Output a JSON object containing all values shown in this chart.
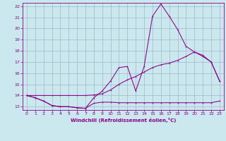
{
  "xlabel": "Windchill (Refroidissement éolien,°C)",
  "bg_color": "#cbe8ee",
  "grid_color": "#a0b8cc",
  "line_color": "#880088",
  "xlim": [
    -0.5,
    23.5
  ],
  "ylim": [
    12.7,
    22.3
  ],
  "x_ticks": [
    0,
    1,
    2,
    3,
    4,
    5,
    6,
    7,
    8,
    9,
    10,
    11,
    12,
    13,
    14,
    15,
    16,
    17,
    18,
    19,
    20,
    21,
    22,
    23
  ],
  "y_ticks": [
    13,
    14,
    15,
    16,
    17,
    18,
    19,
    20,
    21,
    22
  ],
  "line1_x": [
    0,
    1,
    2,
    3,
    4,
    5,
    6,
    7,
    8,
    9,
    10,
    11,
    12,
    13,
    14,
    15,
    16,
    17,
    18,
    19,
    20,
    21,
    22,
    23
  ],
  "line1_y": [
    14.0,
    13.8,
    13.5,
    13.1,
    13.0,
    13.0,
    12.9,
    12.85,
    13.3,
    13.4,
    13.4,
    13.35,
    13.35,
    13.35,
    13.35,
    13.35,
    13.35,
    13.35,
    13.35,
    13.35,
    13.35,
    13.35,
    13.35,
    13.5
  ],
  "line2_x": [
    0,
    1,
    2,
    3,
    4,
    5,
    6,
    7,
    8,
    9,
    10,
    11,
    12,
    13,
    14,
    15,
    16,
    17,
    18,
    19,
    20,
    21,
    22,
    23
  ],
  "line2_y": [
    14.0,
    13.8,
    13.5,
    13.1,
    13.0,
    13.0,
    12.9,
    12.85,
    13.8,
    14.4,
    15.3,
    16.5,
    16.6,
    14.4,
    16.6,
    21.1,
    22.2,
    21.1,
    19.9,
    18.4,
    17.9,
    17.5,
    17.0,
    15.3
  ],
  "line3_x": [
    0,
    1,
    2,
    3,
    4,
    5,
    6,
    7,
    8,
    9,
    10,
    11,
    12,
    13,
    14,
    15,
    16,
    17,
    18,
    19,
    20,
    21,
    22,
    23
  ],
  "line3_y": [
    14.0,
    14.0,
    14.0,
    14.0,
    14.0,
    14.0,
    14.0,
    14.0,
    14.05,
    14.15,
    14.5,
    15.0,
    15.4,
    15.7,
    16.1,
    16.5,
    16.75,
    16.9,
    17.15,
    17.5,
    17.9,
    17.6,
    17.0,
    15.3
  ]
}
